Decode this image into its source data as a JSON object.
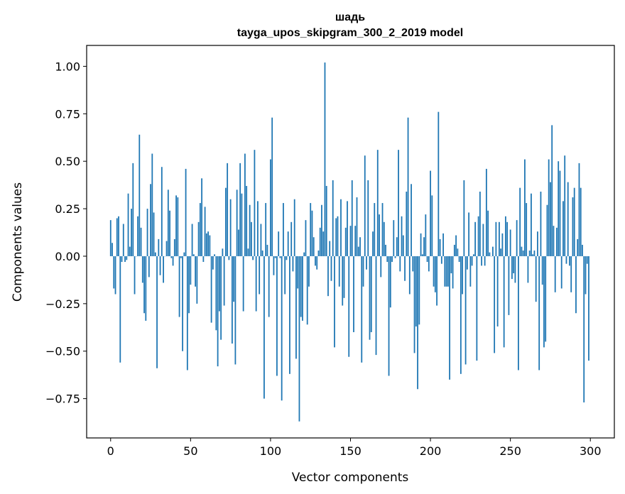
{
  "chart_data": {
    "type": "bar",
    "title": "шадь",
    "subtitle": "tayga_upos_skipgram_300_2_2019 model",
    "xlabel": "Vector components",
    "ylabel": "Components values",
    "xlim": [
      -15,
      315
    ],
    "ylim": [
      -0.957,
      1.11
    ],
    "x_ticks": [
      0,
      50,
      100,
      150,
      200,
      250,
      300
    ],
    "x_tick_labels": [
      "0",
      "50",
      "100",
      "150",
      "200",
      "250",
      "300"
    ],
    "y_ticks": [
      -0.75,
      -0.5,
      -0.25,
      0,
      0.25,
      0.5,
      0.75,
      1.0
    ],
    "y_tick_labels": [
      "−0.75",
      "−0.50",
      "−0.25",
      "0.00",
      "0.25",
      "0.50",
      "0.75",
      "1.00"
    ],
    "grid": false,
    "bar_color": "#1f77b4",
    "values": [
      0.19,
      0.07,
      -0.17,
      -0.2,
      0.2,
      0.21,
      -0.56,
      -0.03,
      0.17,
      -0.03,
      -0.02,
      0.33,
      0.05,
      0.25,
      0.49,
      -0.2,
      0.0,
      0.21,
      0.64,
      0.15,
      -0.14,
      -0.3,
      -0.34,
      0.25,
      -0.11,
      0.38,
      0.54,
      0.23,
      0.02,
      -0.59,
      0.09,
      -0.1,
      0.47,
      -0.14,
      0.0,
      0.08,
      0.35,
      0.24,
      -0.01,
      -0.05,
      0.09,
      0.32,
      0.31,
      -0.32,
      -0.01,
      -0.5,
      0.02,
      0.46,
      -0.6,
      -0.3,
      -0.15,
      0.17,
      0.01,
      -0.16,
      -0.25,
      0.18,
      0.28,
      0.41,
      -0.03,
      0.26,
      0.12,
      0.13,
      0.11,
      -0.35,
      -0.07,
      0.01,
      -0.39,
      -0.58,
      -0.29,
      -0.44,
      0.04,
      -0.26,
      0.36,
      0.49,
      -0.02,
      0.3,
      -0.46,
      -0.24,
      -0.57,
      0.35,
      0.14,
      0.49,
      0.33,
      -0.29,
      0.54,
      0.37,
      0.04,
      0.27,
      0.18,
      -0.02,
      0.56,
      -0.29,
      0.29,
      -0.2,
      0.17,
      0.03,
      -0.75,
      0.28,
      0.06,
      -0.32,
      0.51,
      0.73,
      -0.1,
      -0.01,
      -0.63,
      0.13,
      -0.01,
      -0.76,
      0.28,
      -0.2,
      -0.02,
      0.13,
      -0.62,
      0.18,
      -0.08,
      0.3,
      -0.54,
      -0.17,
      -0.87,
      -0.32,
      -0.34,
      0.02,
      0.19,
      -0.36,
      -0.16,
      0.28,
      0.24,
      0.1,
      -0.05,
      -0.07,
      0.03,
      0.15,
      0.27,
      0.13,
      1.02,
      0.37,
      -0.21,
      0.08,
      -0.13,
      0.4,
      -0.48,
      0.2,
      0.21,
      -0.16,
      0.3,
      -0.26,
      -0.22,
      0.15,
      0.29,
      -0.53,
      0.16,
      0.4,
      -0.4,
      0.16,
      0.31,
      0.05,
      0.1,
      -0.56,
      -0.16,
      0.53,
      -0.07,
      0.4,
      -0.44,
      -0.4,
      0.13,
      0.28,
      -0.52,
      0.56,
      0.22,
      -0.11,
      0.28,
      0.18,
      0.06,
      -0.03,
      -0.63,
      -0.27,
      -0.03,
      0.19,
      -0.01,
      0.1,
      0.56,
      -0.08,
      0.21,
      0.11,
      -0.13,
      0.34,
      0.73,
      -0.2,
      0.38,
      -0.08,
      -0.51,
      -0.37,
      -0.7,
      -0.36,
      0.12,
      0.01,
      0.1,
      0.22,
      -0.03,
      -0.08,
      0.45,
      0.32,
      -0.16,
      -0.19,
      -0.26,
      0.76,
      0.09,
      -0.04,
      0.12,
      -0.16,
      -0.16,
      -0.16,
      -0.65,
      -0.09,
      -0.17,
      0.06,
      0.11,
      0.04,
      -0.03,
      -0.62,
      -0.2,
      0.4,
      -0.57,
      -0.07,
      0.23,
      -0.16,
      -0.05,
      0.01,
      0.18,
      -0.55,
      0.21,
      0.34,
      -0.05,
      0.17,
      -0.05,
      0.46,
      0.24,
      0.02,
      0.0,
      0.05,
      -0.51,
      0.18,
      -0.37,
      0.18,
      0.04,
      0.12,
      -0.48,
      0.21,
      0.18,
      -0.31,
      0.14,
      -0.12,
      -0.09,
      -0.14,
      0.19,
      -0.6,
      0.36,
      0.05,
      0.03,
      0.51,
      0.28,
      -0.14,
      0.03,
      0.33,
      0.01,
      0.03,
      -0.24,
      0.13,
      -0.6,
      0.34,
      -0.15,
      -0.48,
      -0.45,
      0.27,
      0.51,
      0.39,
      0.69,
      0.16,
      -0.19,
      0.15,
      0.5,
      0.45,
      -0.17,
      0.29,
      0.53,
      -0.04,
      0.39,
      -0.05,
      -0.19,
      0.31,
      0.36,
      -0.3,
      0.09,
      0.49,
      0.36,
      0.06,
      -0.77,
      -0.2,
      -0.04,
      -0.55
    ]
  }
}
